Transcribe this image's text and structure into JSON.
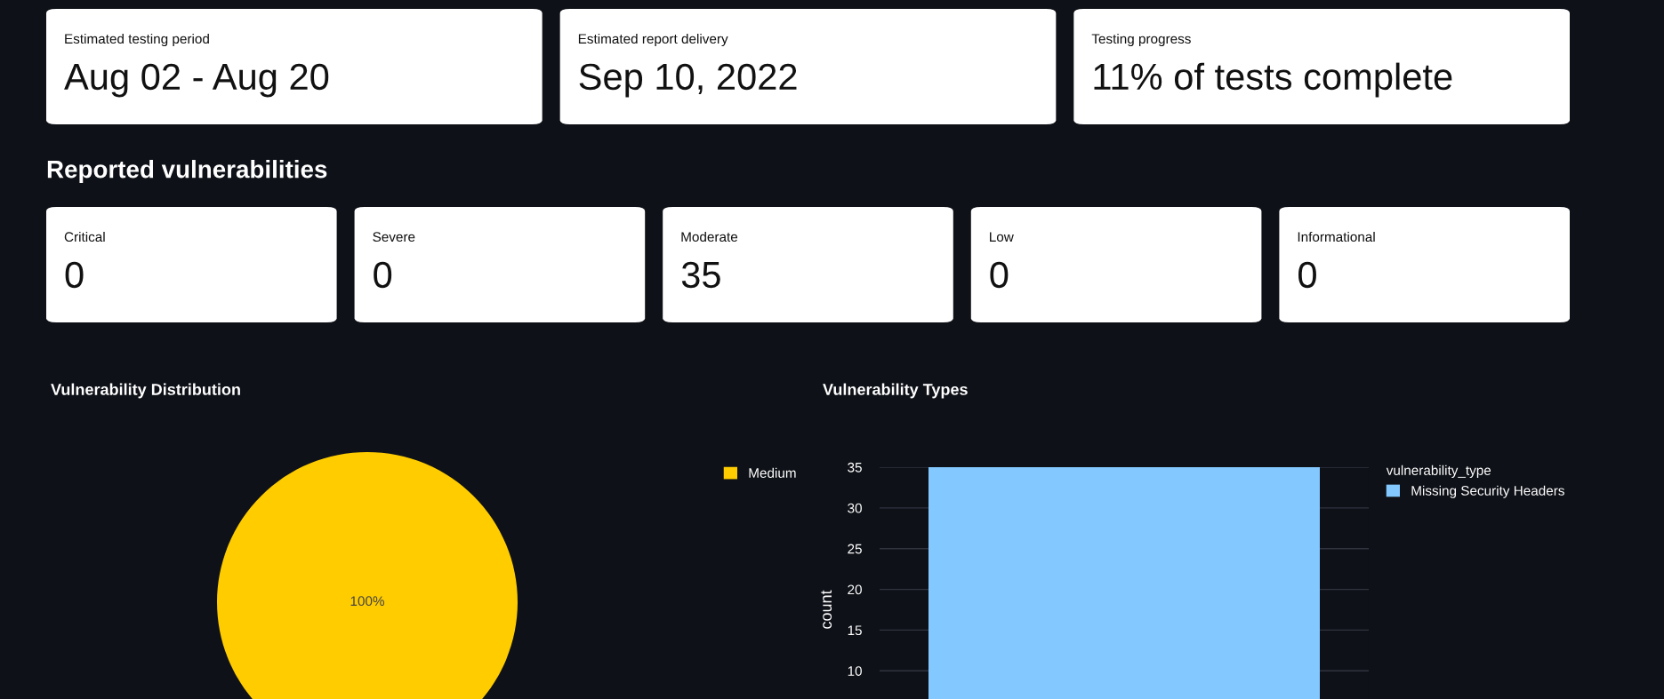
{
  "chart_data": [
    {
      "type": "other",
      "annotations": [
        "Estimated testing period",
        "Aug 02 - Aug 20",
        "Estimated report delivery",
        "Sep 10, 2022",
        "Testing progress",
        "11% of tests complete"
      ]
    },
    {
      "type": "other",
      "title": "Reported vulnerabilities",
      "annotations": [
        "Critical",
        "0",
        "Severe",
        "0",
        "Moderate",
        "35",
        "Low",
        "0",
        "Informational",
        "0"
      ]
    },
    {
      "type": "pie",
      "title": "Vulnerability Distribution",
      "categories": [
        "Medium"
      ],
      "values": [
        100
      ],
      "colors": [
        "#ffcc00"
      ],
      "value_labels": [
        "100%"
      ],
      "legend": "top right"
    },
    {
      "type": "bar",
      "title": "Vulnerability Types",
      "categories": [
        null
      ],
      "ylabel": "count",
      "legend_title": "vulnerability_type",
      "legend": "top right",
      "grid": "y",
      "ylim": [
        0,
        35
      ],
      "yticks": [
        10,
        15,
        20,
        25,
        30,
        35
      ],
      "series": [
        {
          "name": "Missing Security Headers",
          "color": "#83c9ff",
          "values": [
            35
          ]
        }
      ]
    }
  ]
}
